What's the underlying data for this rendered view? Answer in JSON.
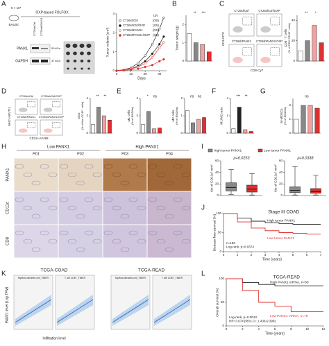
{
  "figure": {
    "panel_labels": [
      "A",
      "B",
      "C",
      "D",
      "E",
      "F",
      "G",
      "H",
      "I",
      "J",
      "K",
      "L"
    ],
    "a": {
      "cells": "5 × 10⁵",
      "mouse": "BALB/c",
      "schedule": "OXP-based FOLFOX",
      "blot": [
        "PANX1",
        "GAPDH"
      ],
      "kda": [
        "50 kDa",
        "37 kDa"
      ],
      "lanes": [
        "CT26shCtrl",
        "CT26shPANX1"
      ],
      "cr": "CR",
      "cr_values": [
        "(0/5)",
        "(2/5)",
        "(0/5)",
        "(3/5)"
      ]
    },
    "c": {
      "plots": [
        "CT26shCtrl",
        "CT26shCtrl/OXP",
        "CT26shPANX1",
        "CT26shPANX1/OXP"
      ],
      "xlabel": "CD8-Cy7",
      "ylabel": "CD4-FITC"
    },
    "d": {
      "plots": [
        "CT26shCtrl",
        "CT26shCtrl/OXP",
        "CT26shPANX1",
        "CT26shPANX1/OXP"
      ],
      "xlabel": "CD11c-AF488",
      "ylabel": "MHC-II-BV711"
    },
    "h": {
      "groups": [
        "Low PANX1",
        "High PANX1"
      ],
      "patients": [
        "P01",
        "P02",
        "P03",
        "P04"
      ],
      "rows": [
        "PANX1",
        "CD11c",
        "CD8"
      ]
    },
    "i": {
      "legend": [
        "High tumor PANX1",
        "Low tumor PANX1"
      ]
    },
    "k": {
      "titles": [
        "TCGA-COAD",
        "TCGA-READ"
      ],
      "subtitles": [
        "Myeloid dendritic cell_TIMER",
        "T cell CD8+_TIMER"
      ],
      "ylabel": "PANX1 level (Log TPM)",
      "xlabel": "Infiltration level"
    }
  },
  "chart_data": [
    {
      "type": "line",
      "ylabel": "Tumor volume (cm³)",
      "xlabel": "Days",
      "x": [
        0,
        5,
        10,
        15,
        20,
        25,
        30,
        33
      ],
      "xlim": [
        0,
        35
      ],
      "xticks": [
        0,
        10,
        20,
        30
      ],
      "ylim": [
        0,
        3
      ],
      "yticks": [
        0,
        1,
        2,
        3
      ],
      "series": [
        {
          "name": "CT26shCtrl",
          "color": "#222222",
          "marker_fill": "#ffffff",
          "values": [
            0,
            0.05,
            0.15,
            0.4,
            0.8,
            1.4,
            2.2,
            2.8
          ]
        },
        {
          "name": "CT26shCtrl/OXP",
          "color": "#222222",
          "marker_fill": "#222222",
          "values": [
            0,
            0.05,
            0.1,
            0.25,
            0.5,
            0.9,
            1.4,
            1.8
          ]
        },
        {
          "name": "CT26shPANX1",
          "color": "#e03030",
          "marker_fill": "#ffffff",
          "values": [
            0,
            0.05,
            0.1,
            0.2,
            0.4,
            0.7,
            1.2,
            1.5
          ]
        },
        {
          "name": "CT26shPANX1/OXP",
          "color": "#e03030",
          "marker_fill": "#e03030",
          "values": [
            0,
            0.02,
            0.05,
            0.1,
            0.2,
            0.3,
            0.5,
            0.6
          ]
        }
      ]
    },
    {
      "type": "bar",
      "ylabel": "Tumor weight (g)",
      "values": [
        1.5,
        1.0,
        0.9,
        0.5
      ],
      "colors": [
        "#ffffff",
        "#888888",
        "#f4a0a0",
        "#e03030"
      ],
      "ylim": [
        0,
        2.5
      ],
      "yticks": [
        0,
        1,
        2
      ],
      "annotations": [
        "**",
        "***"
      ]
    },
    {
      "type": "bar",
      "ylabel": "CD8⁺ T cells",
      "ylabel2": "(% of CD3⁺CD45⁺ cells)",
      "values": [
        10,
        20,
        35,
        18
      ],
      "colors": [
        "#ffffff",
        "#888888",
        "#f4a0a0",
        "#e03030"
      ],
      "ylim": [
        0,
        45
      ],
      "yticks": [
        0,
        20,
        40
      ],
      "annotations": [
        "**",
        "*"
      ]
    },
    {
      "type": "bar",
      "ylabel": "DCs",
      "ylabel2": "(% of live CD45⁺ cells)",
      "values": [
        1,
        3,
        2,
        1.5
      ],
      "colors": [
        "#ffffff",
        "#888888",
        "#f4a0a0",
        "#e03030"
      ],
      "ylim": [
        0,
        4
      ],
      "yticks": [
        0,
        2,
        4
      ],
      "annotations": [
        "**",
        "**"
      ]
    },
    {
      "type": "bar",
      "ylabel": "M1 cells",
      "ylabel2": "(% of BMDMs)",
      "values": [
        1,
        2.5,
        0.5,
        0.6
      ],
      "colors": [
        "#ffffff",
        "#888888",
        "#f4a0a0",
        "#e03030"
      ],
      "ylim": [
        0,
        4
      ],
      "yticks": [
        0,
        2,
        4
      ],
      "annotations": [
        "*",
        "ns"
      ]
    },
    {
      "type": "bar",
      "ylabel": "M2 cells",
      "ylabel2": "(% of BMDMs)",
      "values": [
        1.3,
        0.6,
        0.8,
        0.9
      ],
      "colors": [
        "#ffffff",
        "#888888",
        "#f4a0a0",
        "#e03030"
      ],
      "ylim": [
        0,
        2
      ],
      "yticks": [
        0,
        1,
        2
      ],
      "annotations": [
        "ns",
        "ns"
      ]
    },
    {
      "type": "bar",
      "ylabel": "M1/M2 ratio",
      "values": [
        0.5,
        3,
        0.4,
        0.2
      ],
      "colors": [
        "#ffffff",
        "#222222",
        "#f4a0a0",
        "#e03030"
      ],
      "ylim": [
        0,
        4
      ],
      "yticks": [
        0,
        2,
        4
      ],
      "annotations": [
        "***",
        "**"
      ]
    },
    {
      "type": "bar",
      "ylabel": "M-MDSCs",
      "ylabel2": "(% of BMDMs)",
      "values": [
        1,
        2,
        2,
        1.8
      ],
      "colors": [
        "#ffffff",
        "#888888",
        "#f4a0a0",
        "#e03030"
      ],
      "ylim": [
        0,
        2.5
      ],
      "yticks": [
        0,
        1,
        2
      ],
      "annotations": [
        "ns"
      ]
    },
    {
      "type": "box",
      "ylabel": "No of CD11c/ mm²",
      "annotation": "p=0.0253",
      "ylim": [
        0,
        60
      ],
      "yticks": [
        0,
        20,
        40,
        60
      ],
      "colors": [
        "#888888",
        "#e03030"
      ],
      "boxes": [
        {
          "min": 2,
          "q1": 8,
          "median": 14,
          "q3": 22,
          "max": 45
        },
        {
          "min": 1,
          "q1": 6,
          "median": 11,
          "q3": 18,
          "max": 38
        }
      ]
    },
    {
      "type": "box",
      "ylabel": "No of CD11c/ mm²",
      "annotation": "p=0.0338",
      "ylim": [
        0,
        60
      ],
      "yticks": [
        0,
        20,
        40,
        60
      ],
      "colors": [
        "#888888",
        "#e03030"
      ],
      "boxes": [
        {
          "min": 1,
          "q1": 5,
          "median": 9,
          "q3": 15,
          "max": 50
        },
        {
          "min": 1,
          "q1": 4,
          "median": 7,
          "q3": 12,
          "max": 35
        }
      ]
    },
    {
      "type": "step",
      "title": "Stage III COAD",
      "ylabel": "Disease-free survival (%)",
      "xlabel": "Time (years)",
      "notes": [
        "n=156",
        "Log-rank, p=0.0374"
      ],
      "x": [
        0,
        1,
        2,
        3,
        4,
        5,
        6,
        7
      ],
      "xlim": [
        0,
        7
      ],
      "xticks": [
        0,
        1,
        2,
        3,
        4,
        5,
        6,
        7
      ],
      "ylim": [
        0,
        100
      ],
      "yticks": [
        0,
        50,
        100
      ],
      "series": [
        {
          "name": "High tumor PANX1",
          "color": "#222222",
          "values": [
            100,
            88,
            80,
            76,
            74,
            72,
            72,
            72
          ]
        },
        {
          "name": "Low tumor PANX1",
          "color": "#e03030",
          "values": [
            100,
            78,
            62,
            55,
            50,
            48,
            46,
            46
          ]
        }
      ]
    },
    {
      "type": "step",
      "title": "TCGA-READ",
      "ylabel": "Overall survival (%)",
      "xlabel": "Time (years)",
      "notes": [
        "Log-rank, p=0.0013",
        "HR=3.674 [95% CI: 1.436-9.398]"
      ],
      "x": [
        0,
        2,
        4,
        6,
        8,
        10,
        12
      ],
      "xlim": [
        0,
        12
      ],
      "xticks": [
        0,
        2,
        4,
        6,
        8,
        10,
        12
      ],
      "ylim": [
        0,
        100
      ],
      "yticks": [
        0,
        50,
        100
      ],
      "series": [
        {
          "name": "High PANX1 mRNA, n=80",
          "color": "#222222",
          "values": [
            100,
            92,
            88,
            85,
            85,
            85,
            85
          ]
        },
        {
          "name": "Low PANX1 mRNA, n=79",
          "color": "#e03030",
          "values": [
            100,
            75,
            50,
            42,
            30,
            30,
            30
          ]
        }
      ]
    }
  ]
}
